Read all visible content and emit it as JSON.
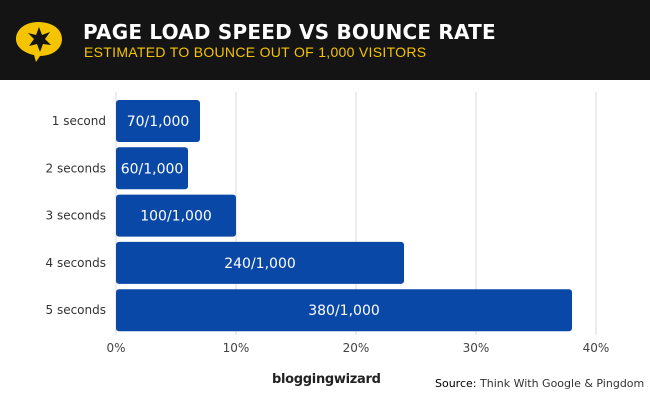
{
  "header": {
    "title": "PAGE LOAD SPEED VS BOUNCE RATE",
    "subtitle": "ESTIMATED TO BOUNCE OUT OF 1,000 VISITORS",
    "logo_icon": "star-speech-bubble-icon"
  },
  "footer": {
    "brand": "bloggingwizard",
    "source_label": "Source:",
    "source_text": "Think With Google & Pingdom"
  },
  "colors": {
    "bar": "#0a48a8",
    "header_bg": "#141414",
    "accent": "#f5c400"
  },
  "chart_data": {
    "type": "bar",
    "orientation": "horizontal",
    "title": "PAGE LOAD SPEED VS BOUNCE RATE",
    "subtitle": "ESTIMATED TO BOUNCE OUT OF 1,000 VISITORS",
    "categories": [
      "1 second",
      "2 seconds",
      "3 seconds",
      "4 seconds",
      "5 seconds"
    ],
    "values": [
      7,
      6,
      10,
      24,
      38
    ],
    "data_labels": [
      "70/1,000",
      "60/1,000",
      "100/1,000",
      "240/1,000",
      "380/1,000"
    ],
    "xlim": [
      0,
      40
    ],
    "xticks": [
      "0%",
      "10%",
      "20%",
      "30%",
      "40%"
    ],
    "grid": true
  }
}
